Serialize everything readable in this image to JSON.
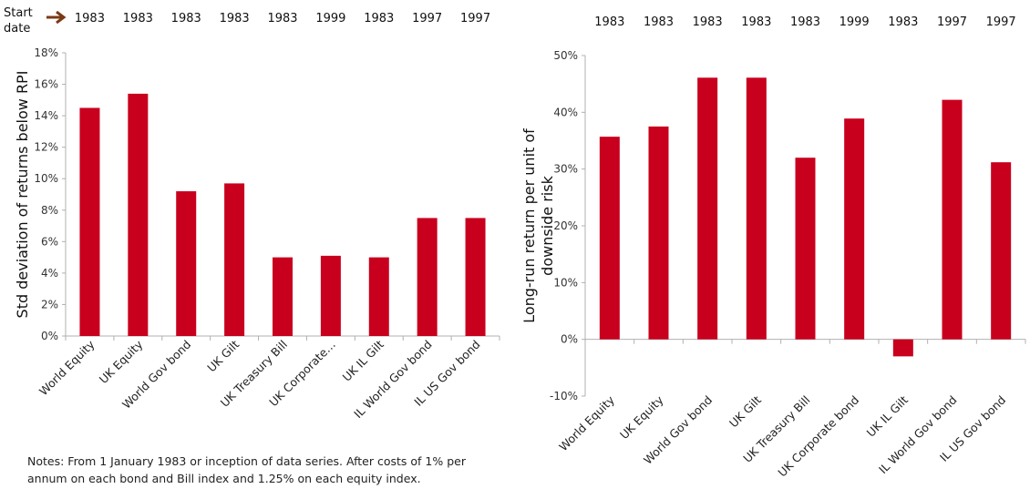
{
  "start_date_label": [
    "Start",
    "date"
  ],
  "notes": [
    "Notes: From 1 January 1983 or inception of data series.  After costs of 1% per",
    "annum on each bond and Bill index and 1.25% on each equity index."
  ],
  "colors": {
    "bar": "#c8001e",
    "arrow": "#7a3a14",
    "axis": "#b0b0b0"
  },
  "chart_data": [
    {
      "type": "bar",
      "ylabel": "Std deviation of returns below RPI",
      "ylim": [
        0,
        18
      ],
      "yticks": [
        "0%",
        "2%",
        "4%",
        "6%",
        "8%",
        "10%",
        "12%",
        "14%",
        "16%",
        "18%"
      ],
      "categories": [
        "World Equity",
        "UK Equity",
        "World Gov bond",
        "UK Gilt",
        "UK Treasury Bill",
        "UK Corporate…",
        "UK IL Gilt",
        "IL World Gov bond",
        "IL US Gov bond"
      ],
      "start_dates": [
        "1983",
        "1983",
        "1983",
        "1983",
        "1983",
        "1999",
        "1983",
        "1997",
        "1997"
      ],
      "values": [
        14.5,
        15.4,
        9.2,
        9.7,
        5.0,
        5.1,
        5.0,
        7.5,
        7.5
      ]
    },
    {
      "type": "bar",
      "ylabel": [
        "Long-run return per unit of",
        "downside risk"
      ],
      "ylim": [
        -10,
        50
      ],
      "yticks": [
        "-10%",
        "0%",
        "10%",
        "20%",
        "30%",
        "40%",
        "50%"
      ],
      "categories": [
        "World Equity",
        "UK Equity",
        "World Gov bond",
        "UK Gilt",
        "UK Treasury Bill",
        "UK Corporate bond",
        "UK IL Gilt",
        "IL World Gov bond",
        "IL US Gov bond"
      ],
      "start_dates": [
        "1983",
        "1983",
        "1983",
        "1983",
        "1983",
        "1999",
        "1983",
        "1997",
        "1997"
      ],
      "values": [
        35.7,
        37.5,
        46.1,
        46.1,
        32.0,
        38.9,
        -3.0,
        42.2,
        31.2
      ]
    }
  ]
}
